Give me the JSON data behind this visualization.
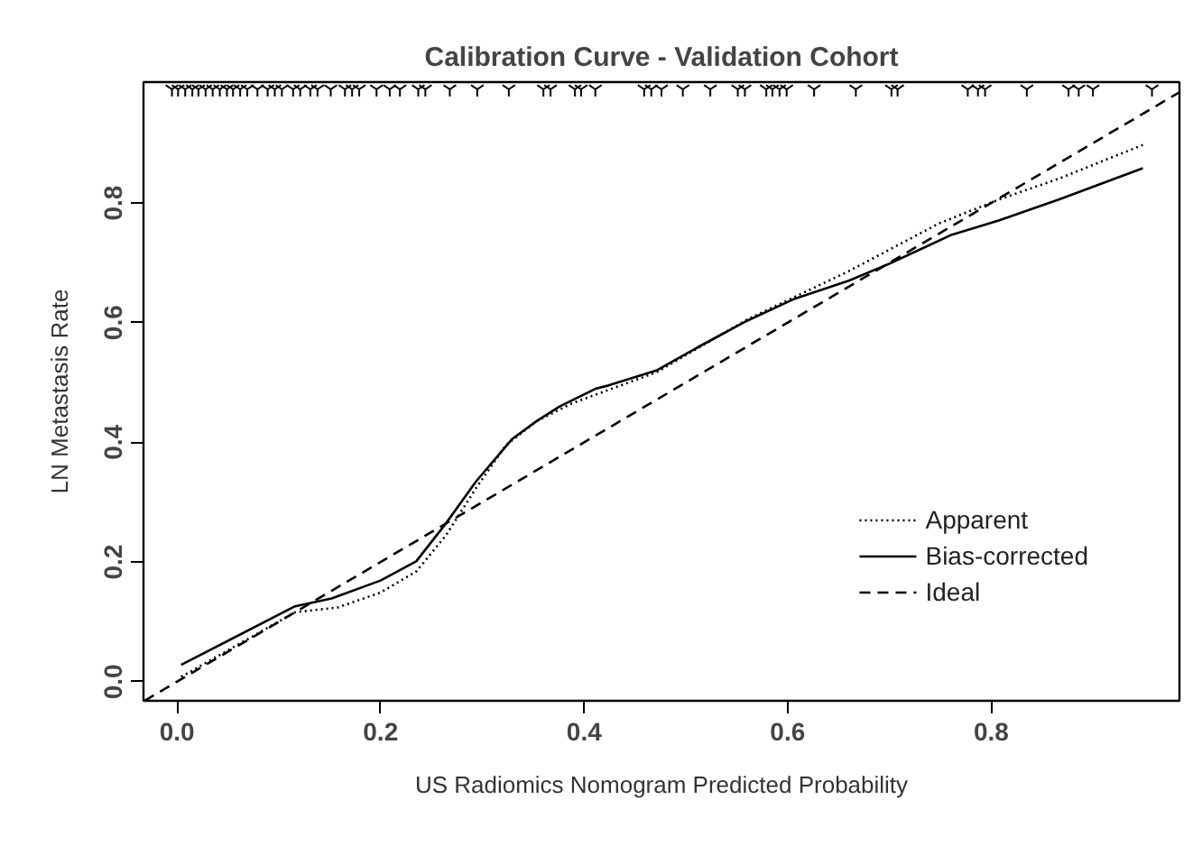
{
  "chart_data": {
    "type": "line",
    "title": "Calibration Curve - Validation Cohort",
    "xlabel": "US Radiomics Nomogram Predicted Probability",
    "ylabel": "LN Metastasis Rate",
    "xlim": [
      -0.033,
      0.985
    ],
    "ylim": [
      -0.032,
      1.002
    ],
    "xticks": [
      {
        "value": 0,
        "label": "0.0"
      },
      0.2,
      0.4,
      0.6,
      0.8
    ],
    "yticks": [
      {
        "value": 0,
        "label": "0.0"
      },
      0.2,
      0.4,
      0.6,
      0.8
    ],
    "grid": false,
    "legend": "bottom right",
    "series": [
      {
        "name": "Apparent",
        "color": "#000000",
        "line_style": "dotted",
        "x": [
          0.004,
          0.116,
          0.158,
          0.2,
          0.235,
          0.264,
          0.294,
          0.323,
          0.353,
          0.388,
          0.412,
          0.471,
          0.56,
          0.66,
          0.749,
          0.808,
          0.867,
          0.949
        ],
        "values": [
          0.008,
          0.116,
          0.124,
          0.149,
          0.184,
          0.244,
          0.324,
          0.395,
          0.435,
          0.465,
          0.48,
          0.517,
          0.605,
          0.686,
          0.766,
          0.806,
          0.841,
          0.897
        ]
      },
      {
        "name": "Bias-corrected",
        "color": "#000000",
        "line_style": "solid",
        "x": [
          0.004,
          0.116,
          0.152,
          0.2,
          0.235,
          0.264,
          0.294,
          0.329,
          0.353,
          0.376,
          0.412,
          0.424,
          0.471,
          0.513,
          0.56,
          0.607,
          0.66,
          0.702,
          0.76,
          0.808,
          0.867,
          0.949
        ],
        "values": [
          0.028,
          0.126,
          0.139,
          0.169,
          0.201,
          0.264,
          0.335,
          0.405,
          0.435,
          0.46,
          0.49,
          0.495,
          0.52,
          0.56,
          0.603,
          0.64,
          0.67,
          0.7,
          0.746,
          0.771,
          0.806,
          0.858
        ]
      },
      {
        "name": "Ideal",
        "color": "#000000",
        "line_style": "dashed",
        "x": [
          -0.032,
          0.985
        ],
        "values": [
          -0.032,
          0.985
        ]
      },
      {
        "type": "scatter",
        "marker": "cross",
        "color": "#000000",
        "x": [
          -0.005,
          0.001,
          0.008,
          0.015,
          0.021,
          0.028,
          0.035,
          0.042,
          0.049,
          0.055,
          0.062,
          0.069,
          0.079,
          0.089,
          0.096,
          0.103,
          0.114,
          0.121,
          0.131,
          0.138,
          0.151,
          0.165,
          0.172,
          0.179,
          0.196,
          0.209,
          0.219,
          0.237,
          0.244,
          0.268,
          0.295,
          0.326,
          0.36,
          0.367,
          0.391,
          0.397,
          0.411,
          0.459,
          0.466,
          0.476,
          0.497,
          0.524,
          0.551,
          0.558,
          0.579,
          0.585,
          0.592,
          0.599,
          0.626,
          0.667,
          0.702,
          0.708,
          0.777,
          0.787,
          0.794,
          0.835,
          0.876,
          0.886,
          0.9,
          0.958
        ],
        "values": [
          0.99,
          0.99,
          0.99,
          0.99,
          0.99,
          0.99,
          0.99,
          0.99,
          0.99,
          0.99,
          0.99,
          0.99,
          0.99,
          0.99,
          0.99,
          0.99,
          0.99,
          0.99,
          0.99,
          0.99,
          0.99,
          0.99,
          0.99,
          0.99,
          0.99,
          0.99,
          0.99,
          0.99,
          0.99,
          0.99,
          0.99,
          0.99,
          0.99,
          0.99,
          0.99,
          0.99,
          0.99,
          0.99,
          0.99,
          0.99,
          0.99,
          0.99,
          0.99,
          0.99,
          0.99,
          0.99,
          0.99,
          0.99,
          0.99,
          0.99,
          0.99,
          0.99,
          0.99,
          0.99,
          0.99,
          0.99,
          0.99,
          0.99,
          0.99,
          0.99
        ]
      }
    ]
  }
}
